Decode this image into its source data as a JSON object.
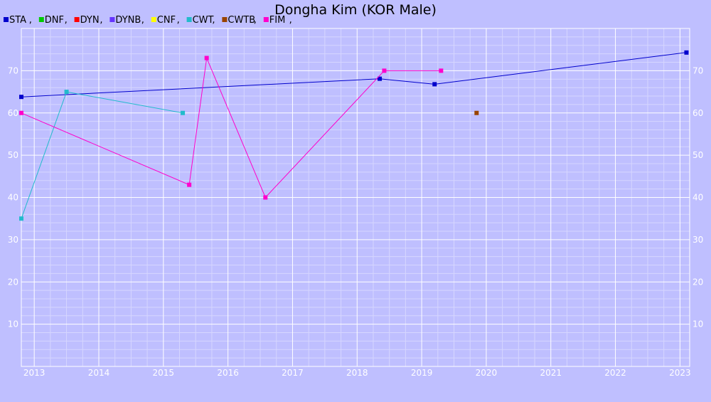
{
  "chart_data": {
    "type": "line",
    "title": "Dongha Kim (KOR Male)",
    "xlabel": "",
    "ylabel": "",
    "xlim": [
      2012.8,
      2023.15
    ],
    "ylim": [
      0,
      80
    ],
    "x_ticks": [
      "2013",
      "2014",
      "2015",
      "2016",
      "2017",
      "2018",
      "2019",
      "2020",
      "2021",
      "2022",
      "2023"
    ],
    "y_ticks": [
      "10",
      "20",
      "30",
      "40",
      "50",
      "60",
      "70"
    ],
    "grid": true,
    "legend_position": "top-left",
    "series": [
      {
        "name": "STA",
        "color": "#0000cc",
        "points": [
          [
            2012.8,
            63.8
          ],
          [
            2018.35,
            68.1
          ],
          [
            2019.2,
            66.8
          ],
          [
            2023.1,
            74.3
          ]
        ]
      },
      {
        "name": "DNF",
        "color": "#00cc00",
        "points": []
      },
      {
        "name": "DYN",
        "color": "#ff0000",
        "points": []
      },
      {
        "name": "DYNB",
        "color": "#6633ff",
        "points": []
      },
      {
        "name": "CNF",
        "color": "#ffff00",
        "points": []
      },
      {
        "name": "CWT",
        "color": "#22bbcc",
        "points": [
          [
            2012.8,
            35
          ],
          [
            2013.5,
            65
          ],
          [
            2015.3,
            60
          ]
        ]
      },
      {
        "name": "CWTB",
        "color": "#994400",
        "points": [
          [
            2019.85,
            60
          ]
        ]
      },
      {
        "name": "FIM",
        "color": "#ff00cc",
        "points": [
          [
            2012.8,
            60
          ],
          [
            2015.4,
            43
          ],
          [
            2015.67,
            73
          ],
          [
            2016.58,
            40
          ],
          [
            2018.42,
            70
          ],
          [
            2019.3,
            70
          ]
        ]
      }
    ]
  }
}
